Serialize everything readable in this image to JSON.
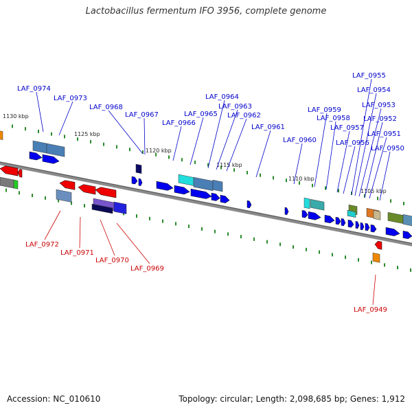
{
  "title": "Lactobacillus fermentum IFO 3956, complete genome",
  "accession": "Accession: NC_010610",
  "summary": "Topology: circular; Length: 2,098,685 bp; Genes: 1,912",
  "colors": {
    "forward_label": "#0000cc",
    "reverse_label": "#cc0000",
    "backbone": "#8a8a8a",
    "tick": "#2a8a2a"
  },
  "scale_labels": [
    "1130 kbp",
    "1125 kbp",
    "1120 kbp",
    "1115 kbp",
    "1110 kbp",
    "1105 kbp"
  ],
  "forward_genes": [
    "LAF_0974",
    "LAF_0973",
    "LAF_0968",
    "LAF_0967",
    "LAF_0966",
    "LAF_0965",
    "LAF_0964",
    "LAF_0963",
    "LAF_0962",
    "LAF_0961",
    "LAF_0960",
    "LAF_0959",
    "LAF_0958",
    "LAF_0957",
    "LAF_0956",
    "LAF_0955",
    "LAF_0954",
    "LAF_0953",
    "LAF_0952",
    "LAF_0951",
    "LAF_0950"
  ],
  "reverse_genes": [
    "LAF_0972",
    "LAF_0971",
    "LAF_0970",
    "LAF_0969",
    "LAF_0949"
  ]
}
